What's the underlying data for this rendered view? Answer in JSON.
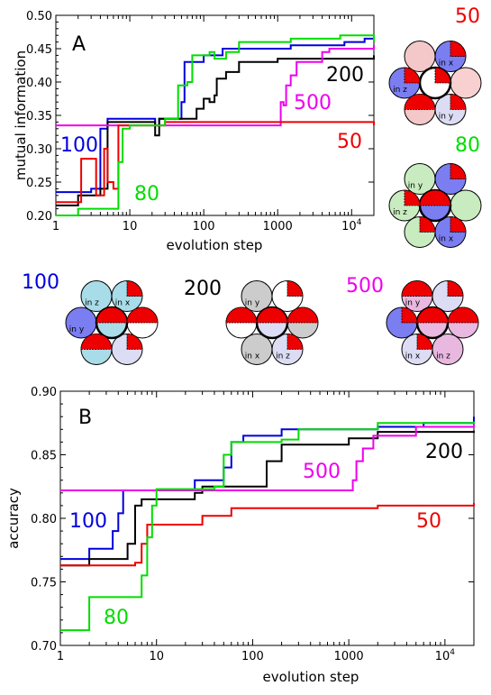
{
  "colors": {
    "s100": "#0000dd",
    "s200": "#000000",
    "s500": "#ee00ee",
    "s50": "#ee0000",
    "s80": "#00dd00"
  },
  "chart_data": [
    {
      "type": "line",
      "panel_label": "A",
      "ylabel": "mutual information",
      "xlabel": "evolution step",
      "x_scale": "log",
      "xlim": [
        1,
        20000
      ],
      "ylim": [
        0.2,
        0.5
      ],
      "yticks": [
        "0.20",
        "0.25",
        "0.30",
        "0.35",
        "0.40",
        "0.45",
        "0.50"
      ],
      "xticks": [
        "1",
        "10",
        "100",
        "1000",
        "10"
      ],
      "xtick_sup": "4",
      "series": [
        {
          "name": "100",
          "color": "#0000dd",
          "points": [
            [
              1,
              0.235
            ],
            [
              3,
              0.24
            ],
            [
              4,
              0.33
            ],
            [
              5,
              0.345
            ],
            [
              10,
              0.345
            ],
            [
              20,
              0.345
            ],
            [
              22,
              0.335
            ],
            [
              25,
              0.345
            ],
            [
              50,
              0.37
            ],
            [
              55,
              0.43
            ],
            [
              80,
              0.43
            ],
            [
              100,
              0.44
            ],
            [
              150,
              0.44
            ],
            [
              180,
              0.45
            ],
            [
              1200,
              0.45
            ],
            [
              1500,
              0.455
            ],
            [
              6000,
              0.455
            ],
            [
              8000,
              0.46
            ],
            [
              15000,
              0.465
            ],
            [
              20000,
              0.47
            ]
          ]
        },
        {
          "name": "200",
          "color": "#000000",
          "points": [
            [
              1,
              0.215
            ],
            [
              2,
              0.23
            ],
            [
              4,
              0.24
            ],
            [
              5,
              0.34
            ],
            [
              20,
              0.34
            ],
            [
              22,
              0.32
            ],
            [
              25,
              0.345
            ],
            [
              60,
              0.345
            ],
            [
              80,
              0.36
            ],
            [
              100,
              0.375
            ],
            [
              120,
              0.37
            ],
            [
              140,
              0.38
            ],
            [
              150,
              0.405
            ],
            [
              200,
              0.415
            ],
            [
              300,
              0.43
            ],
            [
              1000,
              0.435
            ],
            [
              20000,
              0.44
            ]
          ]
        },
        {
          "name": "500",
          "color": "#ee00ee",
          "points": [
            [
              1,
              0.335
            ],
            [
              1000,
              0.335
            ],
            [
              1100,
              0.37
            ],
            [
              1200,
              0.365
            ],
            [
              1300,
              0.395
            ],
            [
              1500,
              0.41
            ],
            [
              1800,
              0.43
            ],
            [
              4000,
              0.445
            ],
            [
              5000,
              0.45
            ],
            [
              20000,
              0.455
            ]
          ]
        },
        {
          "name": "50",
          "color": "#ee0000",
          "points": [
            [
              1,
              0.22
            ],
            [
              2,
              0.22
            ],
            [
              2.2,
              0.285
            ],
            [
              3,
              0.285
            ],
            [
              3.5,
              0.23
            ],
            [
              4.5,
              0.3
            ],
            [
              5,
              0.25
            ],
            [
              6,
              0.24
            ],
            [
              7,
              0.335
            ],
            [
              20,
              0.335
            ],
            [
              30,
              0.34
            ],
            [
              20000,
              0.335
            ]
          ]
        },
        {
          "name": "80",
          "color": "#00dd00",
          "points": [
            [
              1,
              0.2
            ],
            [
              1.5,
              0.2
            ],
            [
              2,
              0.21
            ],
            [
              6,
              0.21
            ],
            [
              7,
              0.28
            ],
            [
              8,
              0.33
            ],
            [
              10,
              0.335
            ],
            [
              25,
              0.335
            ],
            [
              30,
              0.345
            ],
            [
              45,
              0.395
            ],
            [
              60,
              0.4
            ],
            [
              70,
              0.44
            ],
            [
              100,
              0.44
            ],
            [
              120,
              0.445
            ],
            [
              140,
              0.435
            ],
            [
              200,
              0.445
            ],
            [
              300,
              0.46
            ],
            [
              400,
              0.46
            ],
            [
              1500,
              0.465
            ],
            [
              6000,
              0.465
            ],
            [
              7000,
              0.47
            ],
            [
              20000,
              0.46
            ]
          ]
        }
      ],
      "labels": [
        {
          "text": "100",
          "color": "#0000dd"
        },
        {
          "text": "80",
          "color": "#00dd00"
        },
        {
          "text": "200",
          "color": "#000000"
        },
        {
          "text": "500",
          "color": "#ee00ee"
        },
        {
          "text": "50",
          "color": "#ee0000"
        }
      ]
    },
    {
      "type": "line",
      "panel_label": "B",
      "ylabel": "accuracy",
      "xlabel": "evolution step",
      "x_scale": "log",
      "xlim": [
        1,
        20000
      ],
      "ylim": [
        0.7,
        0.9
      ],
      "yticks": [
        "0.70",
        "0.75",
        "0.80",
        "0.85",
        "0.90"
      ],
      "xticks": [
        "1",
        "10",
        "100",
        "1000",
        "10"
      ],
      "xtick_sup": "4",
      "series": [
        {
          "name": "100",
          "color": "#0000dd",
          "points": [
            [
              1,
              0.768
            ],
            [
              2,
              0.776
            ],
            [
              3,
              0.776
            ],
            [
              3.5,
              0.79
            ],
            [
              4,
              0.804
            ],
            [
              4.5,
              0.822
            ],
            [
              20,
              0.822
            ],
            [
              25,
              0.83
            ],
            [
              50,
              0.84
            ],
            [
              60,
              0.86
            ],
            [
              80,
              0.865
            ],
            [
              150,
              0.865
            ],
            [
              200,
              0.87
            ],
            [
              2000,
              0.872
            ],
            [
              6000,
              0.875
            ],
            [
              20000,
              0.88
            ]
          ]
        },
        {
          "name": "200",
          "color": "#000000",
          "points": [
            [
              1,
              0.763
            ],
            [
              2,
              0.768
            ],
            [
              4,
              0.768
            ],
            [
              5,
              0.78
            ],
            [
              6,
              0.81
            ],
            [
              7,
              0.815
            ],
            [
              20,
              0.815
            ],
            [
              25,
              0.82
            ],
            [
              30,
              0.825
            ],
            [
              120,
              0.825
            ],
            [
              140,
              0.845
            ],
            [
              200,
              0.858
            ],
            [
              1000,
              0.863
            ],
            [
              2000,
              0.868
            ],
            [
              20000,
              0.869
            ]
          ]
        },
        {
          "name": "500",
          "color": "#ee00ee",
          "points": [
            [
              1,
              0.822
            ],
            [
              1000,
              0.822
            ],
            [
              1100,
              0.83
            ],
            [
              1200,
              0.845
            ],
            [
              1400,
              0.855
            ],
            [
              1800,
              0.865
            ],
            [
              5000,
              0.872
            ],
            [
              20000,
              0.875
            ]
          ]
        },
        {
          "name": "50",
          "color": "#ee0000",
          "points": [
            [
              1,
              0.763
            ],
            [
              5,
              0.763
            ],
            [
              6,
              0.765
            ],
            [
              7,
              0.78
            ],
            [
              8,
              0.795
            ],
            [
              30,
              0.802
            ],
            [
              60,
              0.808
            ],
            [
              2000,
              0.81
            ],
            [
              20000,
              0.812
            ]
          ]
        },
        {
          "name": "80",
          "color": "#00dd00",
          "points": [
            [
              1,
              0.712
            ],
            [
              2,
              0.738
            ],
            [
              6,
              0.738
            ],
            [
              7,
              0.755
            ],
            [
              8,
              0.785
            ],
            [
              9,
              0.81
            ],
            [
              10,
              0.823
            ],
            [
              40,
              0.825
            ],
            [
              50,
              0.85
            ],
            [
              60,
              0.86
            ],
            [
              200,
              0.862
            ],
            [
              300,
              0.87
            ],
            [
              2000,
              0.875
            ],
            [
              20000,
              0.876
            ]
          ]
        }
      ],
      "labels": [
        {
          "text": "100",
          "color": "#0000dd"
        },
        {
          "text": "80",
          "color": "#00dd00"
        },
        {
          "text": "200",
          "color": "#000000"
        },
        {
          "text": "500",
          "color": "#ee00ee"
        },
        {
          "text": "50",
          "color": "#ee0000"
        }
      ]
    }
  ],
  "clusters": [
    {
      "id": "50",
      "label": "50",
      "label_color": "#ee0000",
      "tints": [
        "#f4c8c8",
        "#7b7ef0",
        "#f8d0d0",
        "#dcdcf4",
        "#f4c8c8",
        "#7b7ef0",
        "#ffffff"
      ],
      "inputs": [
        "in x",
        "in y",
        "in z"
      ]
    },
    {
      "id": "80",
      "label": "80",
      "label_color": "#00dd00",
      "tints": [
        "#c8ecc0",
        "#7b7ef0",
        "#c8ecc0",
        "#7b7ef0",
        "#c8ecc0",
        "#c8ecc0",
        "#7b7ef0"
      ],
      "inputs": [
        "in y",
        "in z",
        "in x"
      ]
    },
    {
      "id": "100",
      "label": "100",
      "label_color": "#0000dd",
      "tints": [
        "#a8dce8",
        "#a8dce8",
        "#ffffff",
        "#dcdcf4",
        "#a8dce8",
        "#7b7ef0",
        "#a8dce8"
      ],
      "inputs": [
        "in x",
        "in z",
        "in y"
      ]
    },
    {
      "id": "200",
      "label": "200",
      "label_color": "#000000",
      "tints": [
        "#cccccc",
        "#ffffff",
        "#cccccc",
        "#dcdcf4",
        "#cccccc",
        "#ffffff",
        "#dcdcf4"
      ],
      "inputs": [
        "in y",
        "in x",
        "in z"
      ]
    },
    {
      "id": "500",
      "label": "500",
      "label_color": "#ee00ee",
      "tints": [
        "#e8b8e0",
        "#dcdcf4",
        "#e8b8e0",
        "#e8b8e0",
        "#dcdcf4",
        "#7b7ef0",
        "#e8b8e0"
      ],
      "inputs": [
        "in y",
        "in z",
        "in x"
      ]
    }
  ]
}
